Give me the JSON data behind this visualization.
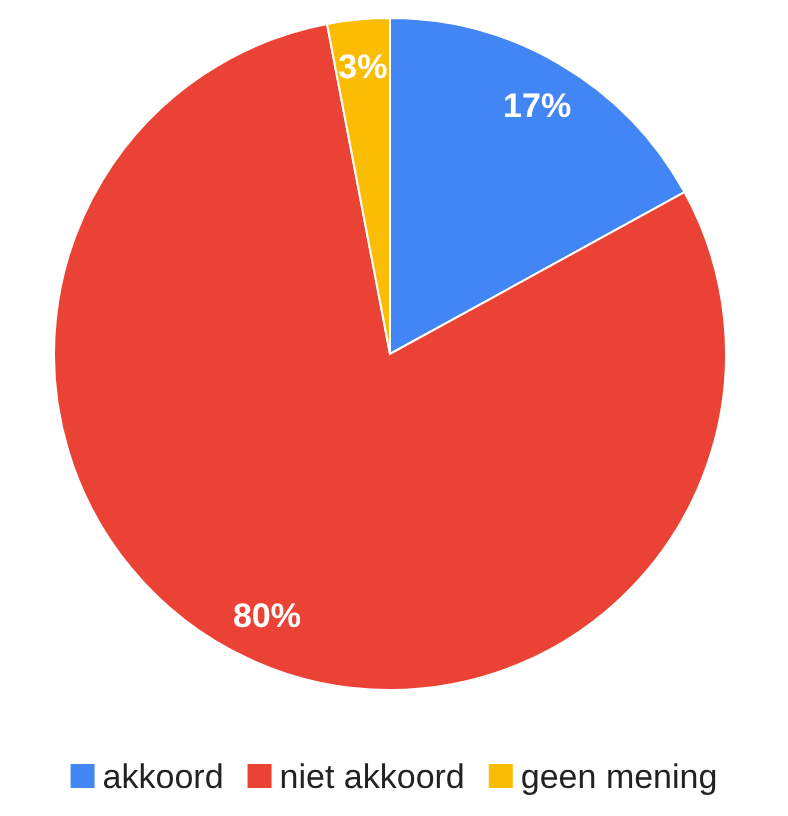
{
  "chart_data": {
    "type": "pie",
    "categories": [
      "akkoord",
      "niet akkoord",
      "geen mening"
    ],
    "values": [
      17,
      80,
      3
    ],
    "colors": [
      "#4285f4",
      "#ea4335",
      "#fbbc04"
    ],
    "value_labels": [
      "17%",
      "80%",
      "3%"
    ],
    "legend": "bottom"
  }
}
